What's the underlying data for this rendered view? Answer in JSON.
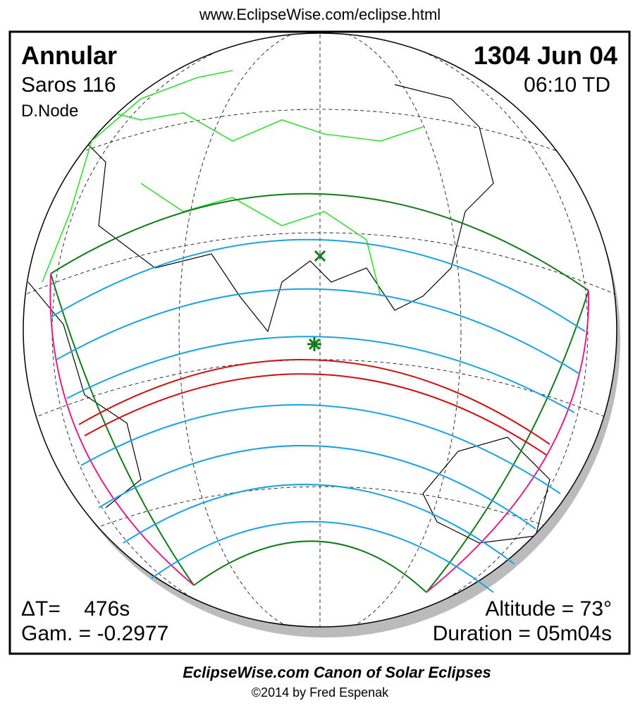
{
  "header": {
    "url": "www.EclipseWise.com/eclipse.html"
  },
  "map": {
    "type_label": "Annular",
    "saros": "Saros 116",
    "node": "D.Node",
    "date": "1304 Jun 04",
    "time": "06:10 TD",
    "delta_t": "ΔT=    476s",
    "gamma": "Gam. = -0.2977",
    "altitude": "Altitude = 73°",
    "duration": "Duration = 05m04s"
  },
  "footer": {
    "title": "EclipseWise.com Canon of Solar Eclipses",
    "credit": "©2014 by Fred Espenak"
  }
}
